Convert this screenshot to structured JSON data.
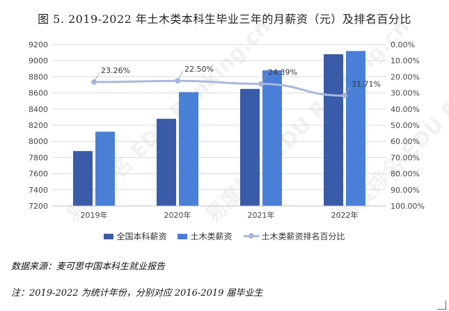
{
  "title": "图 5. 2019-2022 年土木类本科生毕业三年的月薪资（元）及排名百分比",
  "source_note": "数据来源：麦可思中国本科生就业报告",
  "remark_note": "注：2019-2022 为统计年份，分别对应 2016-2019 届毕业生",
  "watermark_text": "易度排名 EDU Ranking.cn",
  "chart_data": {
    "type": "bar",
    "categories": [
      "2019年",
      "2020年",
      "2021年",
      "2022年"
    ],
    "series": [
      {
        "name": "全国本科薪资",
        "type": "bar",
        "axis": "left",
        "color": "#3a5ba8",
        "values": [
          7880,
          8280,
          8650,
          9080
        ]
      },
      {
        "name": "土木类薪资",
        "type": "bar",
        "axis": "left",
        "color": "#4a7fd8",
        "values": [
          8120,
          8610,
          8880,
          9120
        ]
      },
      {
        "name": "土木类薪资排名百分比",
        "type": "line",
        "axis": "right",
        "color": "#aab8dc",
        "values": [
          23.26,
          22.5,
          24.39,
          31.71
        ],
        "labels": [
          "23.26%",
          "22.50%",
          "24.39%",
          "31.71%"
        ]
      }
    ],
    "ylim": [
      7200,
      9200
    ],
    "yticks": [
      "7200",
      "7400",
      "7600",
      "7800",
      "8000",
      "8200",
      "8400",
      "8600",
      "8800",
      "9000",
      "9200"
    ],
    "y2lim": [
      0,
      100
    ],
    "y2_reversed": true,
    "y2ticks": [
      "0.00%",
      "10.00%",
      "20.00%",
      "30.00%",
      "40.00%",
      "50.00%",
      "60.00%",
      "70.00%",
      "80.00%",
      "90.00%",
      "100.00%"
    ],
    "grid": true,
    "legend_position": "bottom"
  }
}
